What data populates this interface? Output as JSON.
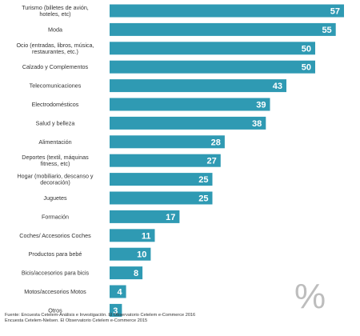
{
  "chart_data": {
    "type": "bar",
    "orientation": "horizontal",
    "categories": [
      [
        "Turismo (billetes de avión,",
        "hoteles, etc)"
      ],
      [
        "Moda"
      ],
      [
        "Ocio (entradas, libros, música,",
        "restaurantes, etc.)"
      ],
      [
        "Calzado y Complementos"
      ],
      [
        "Telecomunicaciones"
      ],
      [
        "Electrodomésticos"
      ],
      [
        "Salud y belleza"
      ],
      [
        "Alimentación"
      ],
      [
        "Deportes (textil, máquinas",
        "fitness, etc)"
      ],
      [
        "Hogar (mobiliario, descanso y",
        "decoración)"
      ],
      [
        "Juguetes"
      ],
      [
        "Formación"
      ],
      [
        "Coches/ Accesorios Coches"
      ],
      [
        "Productos para bebé"
      ],
      [
        "Bicis/accesorios para bicis"
      ],
      [
        "Motos/accesorios Motos"
      ],
      [
        "Otros"
      ]
    ],
    "values": [
      57,
      55,
      50,
      50,
      43,
      39,
      38,
      28,
      27,
      25,
      25,
      17,
      11,
      10,
      8,
      4,
      3
    ],
    "value_labels": [
      "57",
      "55",
      "50",
      "50",
      "43",
      "39",
      "38",
      "28",
      "27",
      "25",
      "25",
      "17",
      "11",
      "10",
      "8",
      "4",
      "3"
    ],
    "xlim": [
      0,
      57
    ],
    "grid": false,
    "legend": "none",
    "unit_mark": "%",
    "bar_color": "#2f9ab3",
    "sources": [
      "Fuente: Encuesta Cetelem-Análisis e Investigación. El Observatorio Cetelem e-Commerce 2016",
      "Encuesta Cetelem-Nielsen. El Observatorio Cetelem e-Commerce 2015"
    ]
  }
}
